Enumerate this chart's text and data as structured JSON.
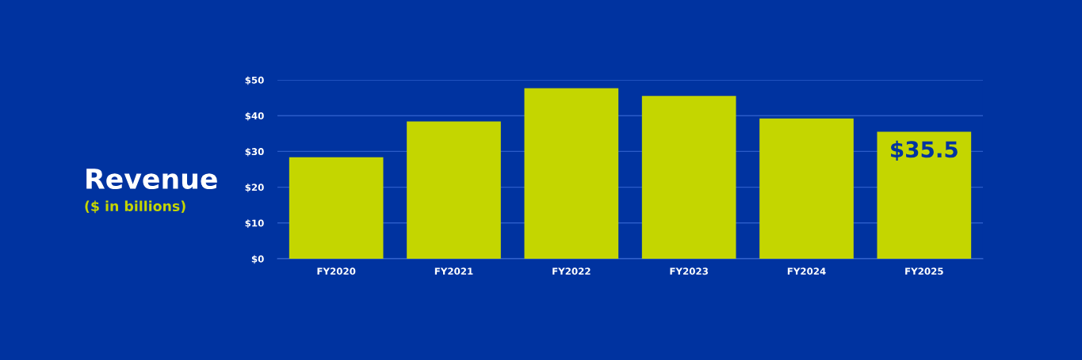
{
  "chart_data": {
    "type": "bar",
    "title": "Revenue",
    "subtitle": "($ in billions)",
    "categories": [
      "FY2020",
      "FY2021",
      "FY2022",
      "FY2023",
      "FY2024",
      "FY2025"
    ],
    "values": [
      28.4,
      38.4,
      47.7,
      45.5,
      39.2,
      35.5
    ],
    "value_labels": [
      null,
      null,
      null,
      null,
      null,
      "$35.5"
    ],
    "color": "#c4d600",
    "ylim": [
      0,
      50
    ],
    "yticks": [
      {
        "value": 0,
        "label": "$0"
      },
      {
        "value": 10,
        "label": "$10"
      },
      {
        "value": 20,
        "label": "$20"
      },
      {
        "value": 30,
        "label": "$30"
      },
      {
        "value": 40,
        "label": "$40"
      },
      {
        "value": 50,
        "label": "$50"
      }
    ],
    "grid": "y",
    "legend": false
  }
}
